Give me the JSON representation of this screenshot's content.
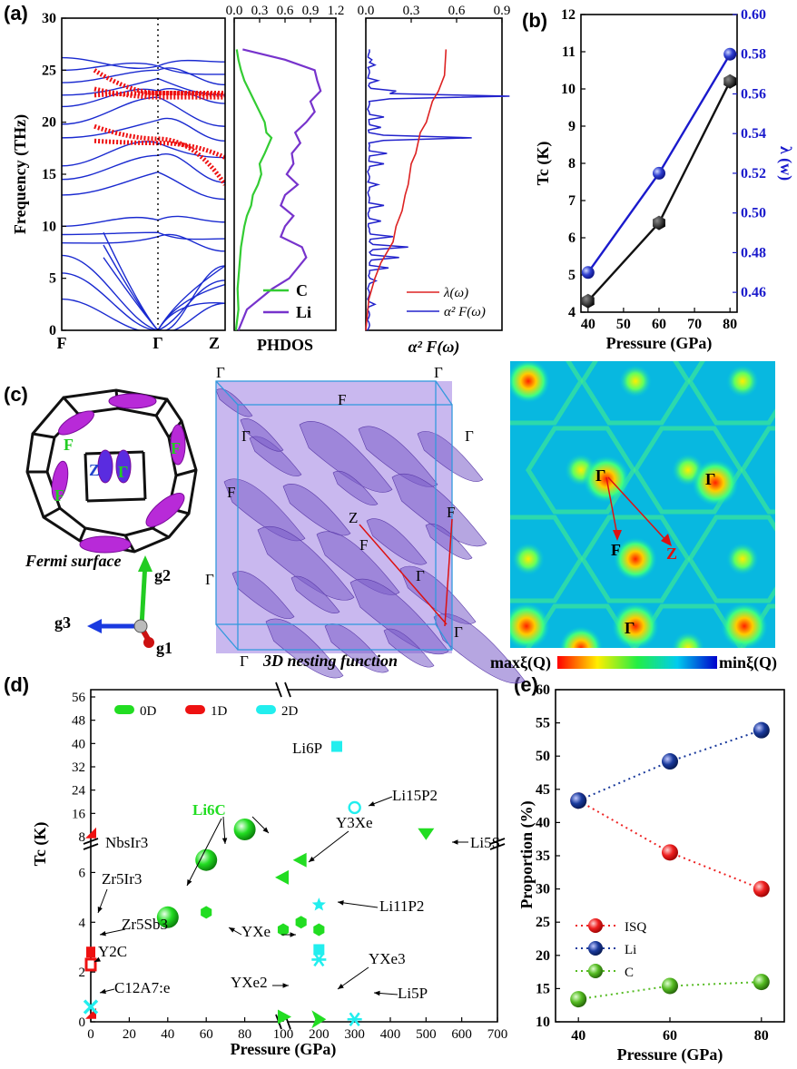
{
  "panels": {
    "a": "(a)",
    "b": "(b)",
    "c": "(c)",
    "d": "(d)",
    "e": "(e)"
  },
  "chart_data": [
    {
      "id": "a-dispersion",
      "type": "line",
      "ylabel": "Frequency (THz)",
      "ylim": [
        0,
        30
      ],
      "yticks": [
        0,
        5,
        10,
        15,
        20,
        25,
        30
      ],
      "xticks": [
        "F",
        "Γ",
        "Z"
      ]
    },
    {
      "id": "a-phdos",
      "type": "line",
      "xlabel": "PHDOS",
      "xlim": [
        0,
        1.2
      ],
      "xticks": [
        "0.0",
        "0.3",
        "0.6",
        "0.9",
        "1.2"
      ],
      "ylim": [
        0,
        30
      ],
      "series": [
        {
          "name": "C",
          "color": "#33cc33",
          "x": [
            0.02,
            0.05,
            0.04,
            0.06,
            0.08,
            0.12,
            0.15,
            0.2,
            0.22,
            0.28,
            0.32,
            0.3,
            0.36,
            0.44,
            0.38,
            0.36,
            0.3,
            0.24,
            0.18,
            0.12,
            0.08,
            0.05,
            0.03
          ],
          "y": [
            0,
            2,
            4,
            6,
            8,
            10,
            11,
            12,
            13,
            14,
            15,
            16,
            17,
            18.5,
            19,
            20,
            21,
            22,
            23,
            24,
            25,
            26,
            27
          ]
        },
        {
          "name": "Li",
          "color": "#7733cc",
          "x": [
            0.05,
            0.15,
            0.3,
            0.45,
            0.65,
            0.75,
            0.85,
            0.8,
            0.55,
            0.6,
            0.7,
            0.55,
            0.6,
            0.75,
            0.62,
            0.7,
            0.68,
            0.78,
            0.72,
            0.85,
            0.95,
            0.9,
            1.02,
            0.98,
            0.95,
            0.6,
            0.1
          ],
          "y": [
            0,
            2,
            3,
            4,
            5,
            6,
            7,
            8,
            9,
            10,
            11,
            12,
            13,
            14,
            15,
            16,
            17,
            18,
            19,
            20,
            21,
            22,
            23,
            24,
            25,
            26,
            27
          ]
        }
      ]
    },
    {
      "id": "a-eliashberg",
      "type": "line",
      "xlabel": "α² F(ω)",
      "xlim": [
        0,
        0.9
      ],
      "xticks": [
        "0.0",
        "0.3",
        "0.6",
        "0.9"
      ],
      "ylim": [
        0,
        30
      ],
      "series": [
        {
          "name": "λ(ω)",
          "color": "#dd2222",
          "x": [
            0,
            0.02,
            0.06,
            0.1,
            0.14,
            0.18,
            0.2,
            0.24,
            0.26,
            0.28,
            0.3,
            0.33,
            0.36,
            0.4,
            0.44,
            0.48,
            0.52,
            0.53
          ],
          "y": [
            0,
            3,
            5,
            6.5,
            7.5,
            8.5,
            10,
            11.5,
            13,
            14,
            16,
            17,
            19,
            20,
            22,
            23,
            24.5,
            27
          ]
        },
        {
          "name": "α² F(ω)",
          "color": "#2222cc"
        }
      ]
    },
    {
      "id": "b",
      "type": "line",
      "xlabel": "Pressure (GPa)",
      "ylabel": "Tc (K)",
      "ylabel_right": "λ (w)",
      "xlim": [
        38,
        82
      ],
      "xticks": [
        40,
        50,
        60,
        70,
        80
      ],
      "ylim": [
        4,
        12
      ],
      "yticks": [
        4,
        5,
        6,
        7,
        8,
        9,
        10,
        11,
        12
      ],
      "ylim_right": [
        0.45,
        0.6
      ],
      "yticks_right": [
        "0.46",
        "0.48",
        "0.50",
        "0.52",
        "0.54",
        "0.56",
        "0.58",
        "0.60"
      ],
      "series": [
        {
          "axis": "left",
          "color": "#111111",
          "x": [
            40,
            60,
            80
          ],
          "y": [
            4.3,
            6.4,
            10.2
          ]
        },
        {
          "axis": "right",
          "color": "#1a1acc",
          "x": [
            40,
            60,
            80
          ],
          "y": [
            0.47,
            0.52,
            0.58
          ]
        }
      ]
    },
    {
      "id": "d",
      "type": "scatter",
      "xlabel": "Pressure (GPa)",
      "ylabel": "Tc (K)",
      "xticks_left": [
        0,
        20,
        40,
        60,
        80
      ],
      "xticks_right": [
        100,
        200,
        300,
        400,
        500,
        600,
        700
      ],
      "yticks_low": [
        0,
        2,
        4,
        6
      ],
      "yticks_high": [
        8,
        16,
        24,
        32,
        40,
        48,
        56
      ],
      "legend": [
        {
          "label": "0D",
          "color": "#22dd22"
        },
        {
          "label": "1D",
          "color": "#ee1111"
        },
        {
          "label": "2D",
          "color": "#22eeee"
        }
      ],
      "points": [
        {
          "x": 40,
          "y": 4.2,
          "dim": "0D",
          "shape": "sphere"
        },
        {
          "x": 60,
          "y": 6.5,
          "dim": "0D",
          "shape": "sphere"
        },
        {
          "x": 80,
          "y": 10.5,
          "dim": "0D",
          "shape": "sphere"
        },
        {
          "x": 60,
          "y": 4.4,
          "dim": "0D",
          "shape": "hexagon"
        },
        {
          "x": 100,
          "y": 0.2,
          "dim": "0D",
          "shape": "triangle-right"
        },
        {
          "x": 200,
          "y": 0.1,
          "dim": "0D",
          "shape": "bowtie"
        },
        {
          "x": 100,
          "y": 3.7,
          "dim": "0D",
          "shape": "hexagon"
        },
        {
          "x": 150,
          "y": 4.0,
          "dim": "0D",
          "shape": "hexagon"
        },
        {
          "x": 200,
          "y": 3.7,
          "dim": "0D",
          "shape": "hexagon"
        },
        {
          "x": 100,
          "y": 5.8,
          "dim": "0D",
          "shape": "triangle-left"
        },
        {
          "x": 150,
          "y": 6.5,
          "dim": "0D",
          "shape": "triangle-left"
        },
        {
          "x": 500,
          "y": 9.0,
          "dim": "0D",
          "shape": "triangle-down"
        },
        {
          "x": 0,
          "y": 2.8,
          "dim": "1D",
          "shape": "rect"
        },
        {
          "x": 0,
          "y": 2.3,
          "dim": "1D",
          "shape": "rect-open"
        },
        {
          "x": 0,
          "y": 0.3,
          "dim": "1D",
          "shape": "triangle"
        },
        {
          "x": 0,
          "y": 9.0,
          "dim": "1D",
          "shape": "triangle"
        },
        {
          "x": 0,
          "y": 0.6,
          "dim": "2D",
          "shape": "cross"
        },
        {
          "x": 200,
          "y": 4.7,
          "dim": "2D",
          "shape": "star"
        },
        {
          "x": 200,
          "y": 2.9,
          "dim": "2D",
          "shape": "square"
        },
        {
          "x": 200,
          "y": 2.5,
          "dim": "2D",
          "shape": "asterisk"
        },
        {
          "x": 300,
          "y": 0.1,
          "dim": "2D",
          "shape": "asterisk"
        },
        {
          "x": 300,
          "y": 18.0,
          "dim": "2D",
          "shape": "circle-open"
        },
        {
          "x": 250,
          "y": 39.0,
          "dim": "2D",
          "shape": "square"
        }
      ],
      "annotations": [
        "Li6C",
        "Li6P",
        "Li15P2",
        "Y3Xe",
        "Li5S",
        "NbsIr3",
        "Zr5Ir3",
        "Zr5Sb3",
        "Y2C",
        "C12A7:e",
        "YXe",
        "Li11P2",
        "YXe2",
        "YXe3",
        "Li5P"
      ]
    },
    {
      "id": "e",
      "type": "scatter",
      "xlabel": "Pressure (GPa)",
      "ylabel": "Proportion (%)",
      "xlim": [
        35,
        85
      ],
      "xticks": [
        40,
        60,
        80
      ],
      "ylim": [
        10,
        60
      ],
      "yticks": [
        10,
        15,
        20,
        25,
        30,
        35,
        40,
        45,
        50,
        55,
        60
      ],
      "series": [
        {
          "name": "ISQ",
          "color": "#ee2222",
          "x": [
            40,
            60,
            80
          ],
          "y": [
            43.3,
            35.5,
            30.0
          ]
        },
        {
          "name": "Li",
          "color": "#1a3a9c",
          "x": [
            40,
            60,
            80
          ],
          "y": [
            43.3,
            49.2,
            53.9
          ]
        },
        {
          "name": "C",
          "color": "#55bb22",
          "x": [
            40,
            60,
            80
          ],
          "y": [
            13.4,
            15.4,
            16.0
          ]
        }
      ]
    }
  ],
  "panel_c": {
    "caption_left": "Fermi surface",
    "caption_mid": "3D nesting function",
    "axes": [
      "g1",
      "g2",
      "g3"
    ],
    "labels_fs": [
      "F",
      "F",
      "F",
      "Z",
      "Γ"
    ],
    "colorbar_max": "maxξ(Q)",
    "colorbar_min": "minξ(Q)",
    "map_labels": [
      "Γ",
      "Γ",
      "Γ",
      "F",
      "Z"
    ],
    "box_labels": [
      "Γ",
      "Γ",
      "Γ",
      "Γ",
      "F",
      "F",
      "F",
      "F",
      "Z",
      "Γ",
      "Γ",
      "Γ",
      "Γ"
    ]
  },
  "panel_d_labels": {
    "li6c": "Li6C",
    "li6p": "Li6P",
    "li15p2": "Li15P2",
    "y3xe": "Y3Xe",
    "li5s": "Li5S",
    "nbsir3": "NbsIr3",
    "zr5ir3": "Zr5Ir3",
    "zr5sb3": "Zr5Sb3",
    "y2c": "Y2C",
    "c12a7": "C12A7:e",
    "yxe": "YXe",
    "li11p2": "Li11P2",
    "yxe2": "YXe2",
    "yxe3": "YXe3",
    "li5p": "Li5P"
  }
}
